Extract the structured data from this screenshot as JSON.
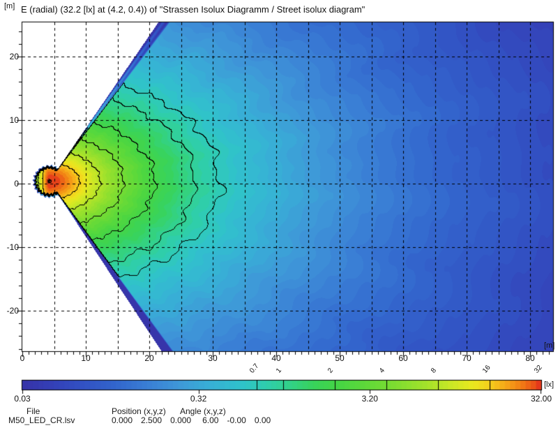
{
  "header": {
    "y_axis_unit": "[m]",
    "title": "E (radial) (32.2 [lx] at (4.2, 0.4)) of \"Strassen Isolux Diagramm / Street isolux diagram\""
  },
  "chart_data": {
    "type": "heatmap",
    "title": "E (radial) (32.2 [lx] at (4.2, 0.4)) of \"Strassen Isolux Diagramm / Street isolux diagram\"",
    "value_unit": "lx",
    "x_axis": {
      "unit": "[m]",
      "tick_labels": [
        "0",
        "10",
        "20",
        "30",
        "40",
        "50",
        "60",
        "70",
        "80"
      ],
      "tick_values": [
        0,
        10,
        20,
        30,
        40,
        50,
        60,
        70,
        80
      ],
      "minor_step_m": 1,
      "range_m": [
        0,
        83.6
      ]
    },
    "y_axis": {
      "unit": "[m]",
      "tick_labels": [
        "20",
        "10",
        "0",
        "-10",
        "-20"
      ],
      "tick_values": [
        20,
        10,
        0,
        -10,
        -20
      ],
      "minor_step_m": 2,
      "range_m": [
        -26.4,
        25.5
      ]
    },
    "grid": {
      "style": "dashed",
      "vertical_step_m": 5,
      "horizontal_step_m": 10
    },
    "peak": {
      "value_lx": 32.2,
      "x_m": 4.2,
      "y_m": 0.4,
      "marker": "asterisk"
    },
    "contour_levels_lx": [
      0.7,
      1,
      2,
      4,
      8,
      16,
      32
    ],
    "legend": {
      "min_lx": 0.03,
      "max_lx": 32.0,
      "scale": "log",
      "bottom_tick_labels": [
        "0.03",
        "0.32",
        "3.20",
        "32.00"
      ],
      "bottom_tick_values": [
        0.03,
        0.32,
        3.2,
        32.0
      ],
      "top_tick_labels": [
        "0.7",
        "1",
        "2",
        "4",
        "8",
        "16",
        "32"
      ],
      "top_tick_values": [
        0.7,
        1,
        2,
        4,
        8,
        16,
        32
      ],
      "unit_label": "[lx]"
    },
    "colormap": [
      [
        0.0,
        "#3733a8"
      ],
      [
        0.06,
        "#3441b8"
      ],
      [
        0.12,
        "#3253c4"
      ],
      [
        0.18,
        "#3366cd"
      ],
      [
        0.24,
        "#3a7ed5"
      ],
      [
        0.3,
        "#3f97d8"
      ],
      [
        0.36,
        "#38afd6"
      ],
      [
        0.42,
        "#30c2cc"
      ],
      [
        0.47,
        "#2fceae"
      ],
      [
        0.52,
        "#33d284"
      ],
      [
        0.56,
        "#38d35c"
      ],
      [
        0.61,
        "#46d544"
      ],
      [
        0.66,
        "#5ed93a"
      ],
      [
        0.72,
        "#7fdd31"
      ],
      [
        0.78,
        "#a5e22b"
      ],
      [
        0.83,
        "#cde826"
      ],
      [
        0.87,
        "#ebe71f"
      ],
      [
        0.9,
        "#f4cf1d"
      ],
      [
        0.93,
        "#f6a919"
      ],
      [
        0.96,
        "#f28015"
      ],
      [
        0.985,
        "#ea5417"
      ],
      [
        1.0,
        "#e12b1e"
      ]
    ],
    "beam": {
      "source_x_m": 4.2,
      "source_y_m": 0.4,
      "half_angle_deg": 56,
      "back_radius_m": 2.5
    },
    "field_model": {
      "exponent": 1.15,
      "sigma_forward_m": 5.2,
      "sigma_lateral_m": 3.2,
      "sigma_back_m": 1.1,
      "edge_fade_deg": 3.0,
      "edge_fade_m": 0.5,
      "edge_fade_decades": 2.4,
      "bands": 60
    }
  },
  "footer": {
    "file_label": "File",
    "file_value": "M50_LED_CR.lsv",
    "position_label": "Position (x,y,z)",
    "angle_label": "Angle (x,y,z)",
    "position_values": [
      "0.000",
      "2.500",
      "0.000"
    ],
    "angle_values": [
      "6.00",
      "-0.00",
      "0.00"
    ]
  }
}
